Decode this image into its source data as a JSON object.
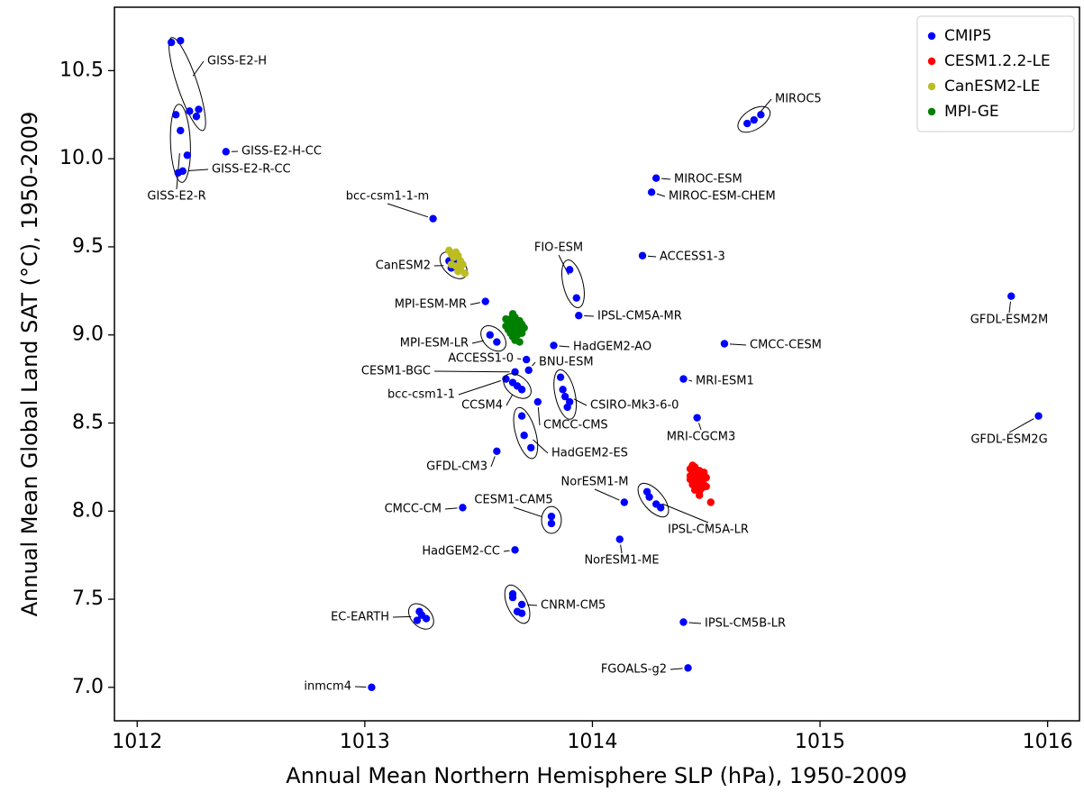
{
  "chart_data": {
    "type": "scatter",
    "x_label": "Annual Mean Northern Hemisphere SLP (hPa), 1950-2009",
    "y_label": "Annual Mean Global Land SAT (°C), 1950-2009",
    "xlim": [
      1011.9,
      1016.14
    ],
    "ylim": [
      6.81,
      10.86
    ],
    "xticks": [
      1012,
      1013,
      1014,
      1015,
      1016
    ],
    "yticks": [
      {
        "value": 7,
        "label": "7.0"
      },
      7.5,
      {
        "value": 8,
        "label": "8.0"
      },
      8.5,
      {
        "value": 9,
        "label": "9.0"
      },
      9.5,
      {
        "value": 10,
        "label": "10.0"
      },
      10.5
    ],
    "grid": false,
    "legend": "upper right",
    "series": [
      {
        "name": "CMIP5",
        "color": "#0000ff",
        "groups": [
          {
            "label": "GISS-E2-H",
            "ellipse": true,
            "x": [
              1012.15,
              1012.19,
              1012.23,
              1012.26,
              1012.27
            ],
            "y": [
              10.66,
              10.67,
              10.27,
              10.24,
              10.28
            ]
          },
          {
            "label": "GISS-E2-R",
            "ellipse": true,
            "x": [
              1012.17,
              1012.19,
              1012.22,
              1012.18
            ],
            "y": [
              10.25,
              10.16,
              10.02,
              9.92
            ]
          },
          {
            "label": "GISS-E2-R-CC",
            "x": [
              1012.2
            ],
            "y": [
              9.93
            ]
          },
          {
            "label": "GISS-E2-H-CC",
            "x": [
              1012.39
            ],
            "y": [
              10.04
            ]
          },
          {
            "label": "bcc-csm1-1-m",
            "x": [
              1013.3
            ],
            "y": [
              9.66
            ]
          },
          {
            "label": "CanESM2",
            "ellipse": true,
            "x": [
              1013.37,
              1013.4,
              1013.41,
              1013.38
            ],
            "y": [
              9.42,
              9.41,
              9.37,
              9.38
            ]
          },
          {
            "label": "MPI-ESM-MR",
            "x": [
              1013.53
            ],
            "y": [
              9.19
            ]
          },
          {
            "label": "MPI-ESM-LR",
            "ellipse": true,
            "x": [
              1013.55,
              1013.58
            ],
            "y": [
              9.0,
              8.96
            ]
          },
          {
            "label": "ACCESS1-0",
            "x": [
              1013.71
            ],
            "y": [
              8.86
            ]
          },
          {
            "label": "BNU-ESM",
            "x": [
              1013.72
            ],
            "y": [
              8.8
            ]
          },
          {
            "label": "CESM1-BGC",
            "x": [
              1013.66
            ],
            "y": [
              8.79
            ]
          },
          {
            "label": "bcc-csm1-1",
            "x": [
              1013.62
            ],
            "y": [
              8.75
            ]
          },
          {
            "label": "CCSM4",
            "ellipse": true,
            "x": [
              1013.65,
              1013.67,
              1013.69
            ],
            "y": [
              8.73,
              8.71,
              8.69
            ]
          },
          {
            "label": "CMCC-CMS",
            "x": [
              1013.76
            ],
            "y": [
              8.62
            ]
          },
          {
            "label": "CSIRO-Mk3-6-0",
            "ellipse": true,
            "x": [
              1013.86,
              1013.87,
              1013.88,
              1013.9,
              1013.89
            ],
            "y": [
              8.76,
              8.69,
              8.65,
              8.62,
              8.59
            ]
          },
          {
            "label": "HadGEM2-AO",
            "x": [
              1013.83
            ],
            "y": [
              8.94
            ]
          },
          {
            "label": "HadGEM2-ES",
            "ellipse": true,
            "x": [
              1013.69,
              1013.7,
              1013.73
            ],
            "y": [
              8.54,
              8.43,
              8.36
            ]
          },
          {
            "label": "GFDL-CM3",
            "x": [
              1013.58
            ],
            "y": [
              8.34
            ]
          },
          {
            "label": "FIO-ESM",
            "ellipse": true,
            "x": [
              1013.9,
              1013.93
            ],
            "y": [
              9.37,
              9.21
            ]
          },
          {
            "label": "IPSL-CM5A-MR",
            "x": [
              1013.94
            ],
            "y": [
              9.11
            ]
          },
          {
            "label": "ACCESS1-3",
            "x": [
              1014.22
            ],
            "y": [
              9.45
            ]
          },
          {
            "label": "MIROC-ESM",
            "x": [
              1014.28
            ],
            "y": [
              9.89
            ]
          },
          {
            "label": "MIROC-ESM-CHEM",
            "x": [
              1014.26
            ],
            "y": [
              9.81
            ]
          },
          {
            "label": "MIROC5",
            "ellipse": true,
            "x": [
              1014.68,
              1014.71,
              1014.74
            ],
            "y": [
              10.2,
              10.22,
              10.25
            ]
          },
          {
            "label": "GFDL-ESM2M",
            "x": [
              1015.84
            ],
            "y": [
              9.22
            ]
          },
          {
            "label": "GFDL-ESM2G",
            "x": [
              1015.96
            ],
            "y": [
              8.54
            ]
          },
          {
            "label": "CMCC-CESM",
            "x": [
              1014.58
            ],
            "y": [
              8.95
            ]
          },
          {
            "label": "MRI-ESM1",
            "x": [
              1014.4
            ],
            "y": [
              8.75
            ]
          },
          {
            "label": "MRI-CGCM3",
            "x": [
              1014.46
            ],
            "y": [
              8.53
            ]
          },
          {
            "label": "NorESM1-M",
            "x": [
              1014.14
            ],
            "y": [
              8.05
            ]
          },
          {
            "label": "NorESM1-ME",
            "x": [
              1014.12
            ],
            "y": [
              7.84
            ]
          },
          {
            "label": "IPSL-CM5A-LR",
            "ellipse": true,
            "x": [
              1014.24,
              1014.25,
              1014.28,
              1014.3
            ],
            "y": [
              8.11,
              8.08,
              8.04,
              8.02
            ]
          },
          {
            "label": "CESM1-CAM5",
            "ellipse": true,
            "x": [
              1013.82,
              1013.82
            ],
            "y": [
              7.97,
              7.93
            ]
          },
          {
            "label": "CMCC-CM",
            "x": [
              1013.43
            ],
            "y": [
              8.02
            ]
          },
          {
            "label": "HadGEM2-CC",
            "x": [
              1013.66
            ],
            "y": [
              7.78
            ]
          },
          {
            "label": "CNRM-CM5",
            "ellipse": true,
            "x": [
              1013.65,
              1013.65,
              1013.69,
              1013.67,
              1013.69
            ],
            "y": [
              7.53,
              7.51,
              7.47,
              7.43,
              7.42
            ]
          },
          {
            "label": "EC-EARTH",
            "ellipse": true,
            "x": [
              1013.24,
              1013.25,
              1013.23,
              1013.27
            ],
            "y": [
              7.43,
              7.41,
              7.38,
              7.39
            ]
          },
          {
            "label": "IPSL-CM5B-LR",
            "x": [
              1014.4
            ],
            "y": [
              7.37
            ]
          },
          {
            "label": "FGOALS-g2",
            "x": [
              1014.42
            ],
            "y": [
              7.11
            ]
          },
          {
            "label": "inmcm4",
            "x": [
              1013.03
            ],
            "y": [
              7.0
            ]
          }
        ]
      },
      {
        "name": "CESM1.2.2-LE",
        "color": "#ff0000",
        "x": [
          1014.43,
          1014.45,
          1014.47,
          1014.49,
          1014.44,
          1014.46,
          1014.48,
          1014.5,
          1014.43,
          1014.45,
          1014.47,
          1014.49,
          1014.44,
          1014.46,
          1014.48,
          1014.45,
          1014.47,
          1014.43,
          1014.46,
          1014.48,
          1014.5,
          1014.44,
          1014.47,
          1014.52
        ],
        "y": [
          8.24,
          8.25,
          8.23,
          8.22,
          8.21,
          8.2,
          8.21,
          8.19,
          8.18,
          8.17,
          8.16,
          8.15,
          8.15,
          8.14,
          8.13,
          8.12,
          8.11,
          8.2,
          8.22,
          8.18,
          8.14,
          8.26,
          8.09,
          8.05
        ]
      },
      {
        "name": "CanESM2-LE",
        "color": "#bcbd22",
        "x": [
          1013.37,
          1013.38,
          1013.4,
          1013.39,
          1013.41,
          1013.42,
          1013.38,
          1013.4,
          1013.43,
          1013.41,
          1013.42,
          1013.44
        ],
        "y": [
          9.48,
          9.46,
          9.47,
          9.44,
          9.45,
          9.42,
          9.4,
          9.39,
          9.4,
          9.36,
          9.37,
          9.35
        ]
      },
      {
        "name": "MPI-GE",
        "color": "#008000",
        "x": [
          1013.62,
          1013.63,
          1013.65,
          1013.66,
          1013.62,
          1013.64,
          1013.66,
          1013.68,
          1013.63,
          1013.65,
          1013.67,
          1013.69,
          1013.64,
          1013.66,
          1013.68,
          1013.7,
          1013.65,
          1013.67,
          1013.69,
          1013.66,
          1013.68,
          1013.64
        ],
        "y": [
          9.09,
          9.07,
          9.12,
          9.1,
          9.05,
          9.06,
          9.07,
          9.08,
          9.03,
          9.04,
          9.05,
          9.06,
          9.01,
          9.02,
          9.03,
          9.04,
          8.99,
          9.0,
          9.01,
          8.97,
          8.96,
          9.09
        ]
      }
    ]
  }
}
